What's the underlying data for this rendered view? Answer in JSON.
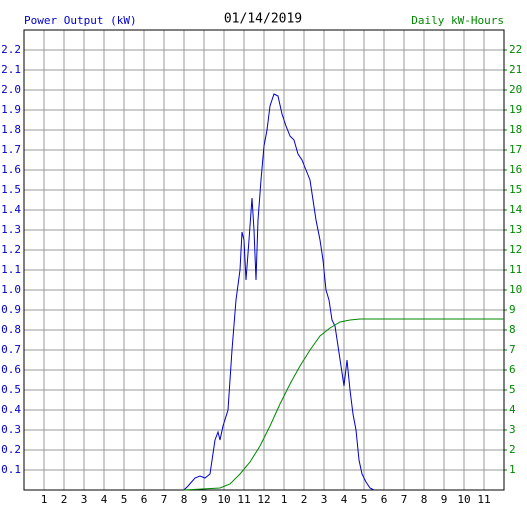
{
  "chart_data": {
    "type": "line",
    "title": "01/14/2019",
    "y_label": "Power Output (kW)",
    "y2_label": "Daily kW-Hours",
    "grid": true,
    "xlim": [
      0,
      24
    ],
    "xticks": [
      1,
      2,
      3,
      4,
      5,
      6,
      7,
      8,
      9,
      10,
      11,
      12,
      {
        "value": 13,
        "label": "1"
      },
      {
        "value": 14,
        "label": "2"
      },
      {
        "value": 15,
        "label": "3"
      },
      {
        "value": 16,
        "label": "4"
      },
      {
        "value": 17,
        "label": "5"
      },
      {
        "value": 18,
        "label": "6"
      },
      {
        "value": 19,
        "label": "7"
      },
      {
        "value": 20,
        "label": "8"
      },
      {
        "value": 21,
        "label": "9"
      },
      {
        "value": 22,
        "label": "10"
      },
      {
        "value": 23,
        "label": "11"
      }
    ],
    "ylim": [
      0,
      2.3
    ],
    "yticks": [
      0.1,
      0.2,
      0.3,
      0.4,
      0.5,
      0.6,
      0.7,
      0.8,
      0.9,
      {
        "value": 1.0,
        "label": "1.0"
      },
      1.1,
      1.2,
      1.3,
      1.4,
      1.5,
      1.6,
      1.7,
      1.8,
      1.9,
      {
        "value": 2.0,
        "label": "2.0"
      },
      2.1,
      2.2
    ],
    "y2lim": [
      0,
      23
    ],
    "y2ticks": [
      1,
      2,
      3,
      4,
      5,
      6,
      7,
      8,
      9,
      10,
      11,
      12,
      13,
      14,
      15,
      16,
      17,
      18,
      19,
      20,
      21,
      22
    ],
    "series": [
      {
        "color": "#0000cc",
        "x": [
          8.0,
          8.2,
          8.55,
          8.8,
          9.05,
          9.3,
          9.55,
          9.7,
          9.8,
          9.95,
          10.2,
          10.4,
          10.6,
          10.8,
          10.9,
          11.0,
          11.1,
          11.25,
          11.4,
          11.5,
          11.6,
          11.7,
          11.85,
          12.0,
          12.15,
          12.3,
          12.5,
          12.7,
          12.9,
          13.1,
          13.3,
          13.5,
          13.7,
          13.9,
          14.1,
          14.3,
          14.45,
          14.6,
          14.8,
          14.95,
          15.1,
          15.25,
          15.4,
          15.55,
          15.7,
          15.85,
          16.0,
          16.15,
          16.3,
          16.45,
          16.6,
          16.75,
          16.9,
          17.1,
          17.3,
          17.5
        ],
        "values": [
          0.0,
          0.02,
          0.06,
          0.07,
          0.06,
          0.08,
          0.25,
          0.29,
          0.25,
          0.32,
          0.4,
          0.7,
          0.95,
          1.1,
          1.29,
          1.25,
          1.05,
          1.25,
          1.46,
          1.3,
          1.05,
          1.35,
          1.55,
          1.72,
          1.8,
          1.92,
          1.98,
          1.97,
          1.88,
          1.82,
          1.77,
          1.75,
          1.68,
          1.65,
          1.6,
          1.55,
          1.45,
          1.35,
          1.25,
          1.15,
          1.0,
          0.95,
          0.85,
          0.82,
          0.72,
          0.62,
          0.52,
          0.65,
          0.5,
          0.38,
          0.3,
          0.15,
          0.08,
          0.04,
          0.01,
          0.0
        ]
      },
      {
        "color": "#008800",
        "axis": "y2",
        "x": [
          8.0,
          9.8,
          10.3,
          10.8,
          11.3,
          11.8,
          12.3,
          12.8,
          13.3,
          13.8,
          14.3,
          14.8,
          15.3,
          15.8,
          16.3,
          16.8,
          24
        ],
        "values": [
          0,
          0.1,
          0.3,
          0.8,
          1.4,
          2.2,
          3.2,
          4.3,
          5.3,
          6.2,
          7.0,
          7.7,
          8.1,
          8.4,
          8.5,
          8.55,
          8.55
        ]
      }
    ]
  }
}
